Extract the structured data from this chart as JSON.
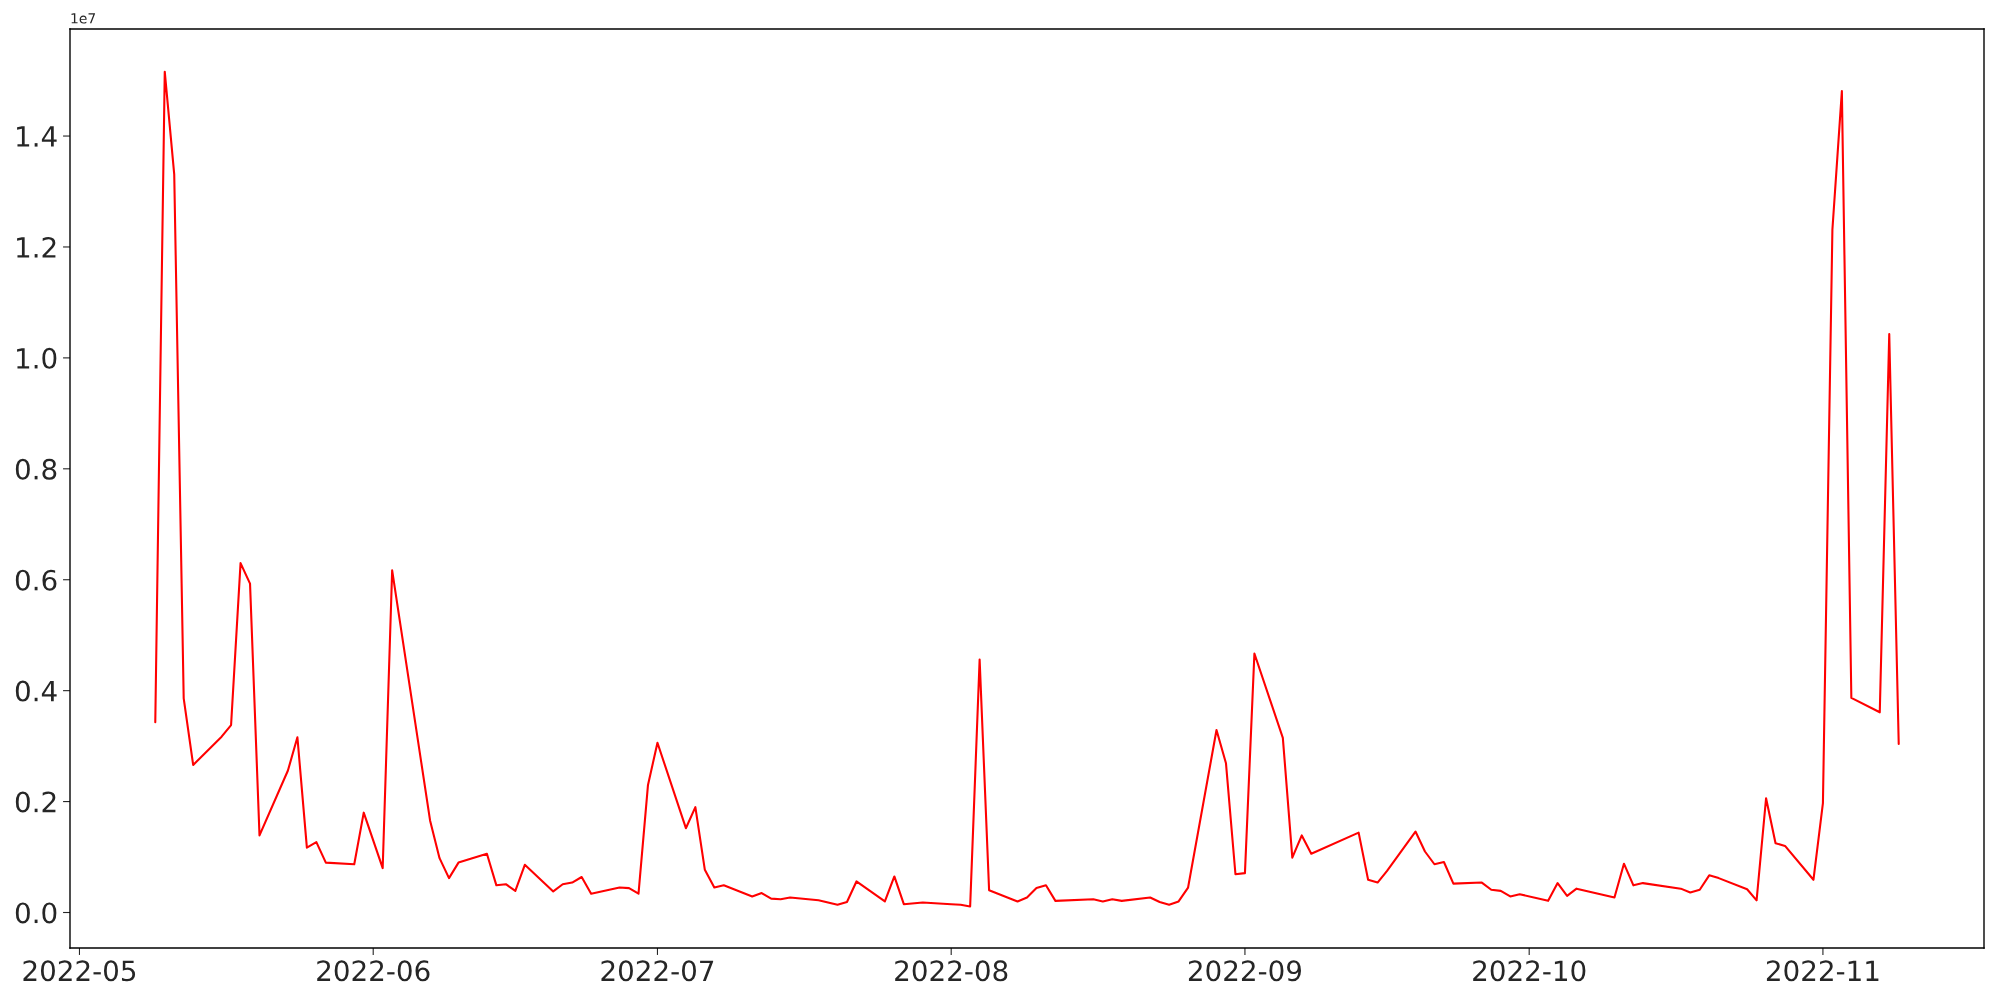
{
  "chart_data": {
    "type": "line",
    "x": [
      "2022-05-09",
      "2022-05-10",
      "2022-05-11",
      "2022-05-12",
      "2022-05-13",
      "2022-05-16",
      "2022-05-17",
      "2022-05-18",
      "2022-05-19",
      "2022-05-20",
      "2022-05-23",
      "2022-05-24",
      "2022-05-25",
      "2022-05-26",
      "2022-05-27",
      "2022-05-30",
      "2022-05-31",
      "2022-06-02",
      "2022-06-03",
      "2022-06-07",
      "2022-06-08",
      "2022-06-09",
      "2022-06-10",
      "2022-06-13",
      "2022-06-14",
      "2022-06-15",
      "2022-06-16",
      "2022-06-17",
      "2022-06-20",
      "2022-06-21",
      "2022-06-22",
      "2022-06-23",
      "2022-06-24",
      "2022-06-27",
      "2022-06-28",
      "2022-06-29",
      "2022-06-30",
      "2022-07-01",
      "2022-07-04",
      "2022-07-05",
      "2022-07-06",
      "2022-07-07",
      "2022-07-08",
      "2022-07-11",
      "2022-07-12",
      "2022-07-13",
      "2022-07-14",
      "2022-07-15",
      "2022-07-18",
      "2022-07-19",
      "2022-07-20",
      "2022-07-21",
      "2022-07-22",
      "2022-07-25",
      "2022-07-26",
      "2022-07-27",
      "2022-07-29",
      "2022-08-01",
      "2022-08-02",
      "2022-08-03",
      "2022-08-04",
      "2022-08-05",
      "2022-08-08",
      "2022-08-09",
      "2022-08-10",
      "2022-08-11",
      "2022-08-12",
      "2022-08-16",
      "2022-08-17",
      "2022-08-18",
      "2022-08-19",
      "2022-08-22",
      "2022-08-23",
      "2022-08-24",
      "2022-08-25",
      "2022-08-26",
      "2022-08-29",
      "2022-08-30",
      "2022-08-31",
      "2022-09-01",
      "2022-09-02",
      "2022-09-05",
      "2022-09-06",
      "2022-09-07",
      "2022-09-08",
      "2022-09-13",
      "2022-09-14",
      "2022-09-15",
      "2022-09-16",
      "2022-09-19",
      "2022-09-20",
      "2022-09-21",
      "2022-09-22",
      "2022-09-23",
      "2022-09-26",
      "2022-09-27",
      "2022-09-28",
      "2022-09-29",
      "2022-09-30",
      "2022-10-03",
      "2022-10-04",
      "2022-10-05",
      "2022-10-06",
      "2022-10-10",
      "2022-10-11",
      "2022-10-12",
      "2022-10-13",
      "2022-10-17",
      "2022-10-18",
      "2022-10-19",
      "2022-10-20",
      "2022-10-21",
      "2022-10-24",
      "2022-10-25",
      "2022-10-26",
      "2022-10-27",
      "2022-10-28",
      "2022-10-31",
      "2022-11-01",
      "2022-11-02",
      "2022-11-03",
      "2022-11-04",
      "2022-11-07",
      "2022-11-08",
      "2022-11-09"
    ],
    "series": [
      {
        "color": "#ff0000",
        "values": [
          0.343,
          1.516,
          1.331,
          0.386,
          0.266,
          0.317,
          0.338,
          0.63,
          0.593,
          0.139,
          0.256,
          0.316,
          0.117,
          0.127,
          0.09,
          0.087,
          0.18,
          0.08,
          0.617,
          0.166,
          0.098,
          0.062,
          0.09,
          0.106,
          0.049,
          0.051,
          0.039,
          0.086,
          0.038,
          0.051,
          0.054,
          0.064,
          0.034,
          0.045,
          0.044,
          0.034,
          0.23,
          0.306,
          0.152,
          0.19,
          0.077,
          0.045,
          0.049,
          0.029,
          0.035,
          0.025,
          0.024,
          0.027,
          0.022,
          0.018,
          0.014,
          0.019,
          0.056,
          0.02,
          0.065,
          0.015,
          0.018,
          0.015,
          0.014,
          0.011,
          0.456,
          0.04,
          0.02,
          0.027,
          0.044,
          0.049,
          0.021,
          0.024,
          0.02,
          0.024,
          0.021,
          0.027,
          0.019,
          0.014,
          0.02,
          0.045,
          0.329,
          0.269,
          0.069,
          0.071,
          0.467,
          0.315,
          0.099,
          0.139,
          0.106,
          0.144,
          0.059,
          0.054,
          0.075,
          0.146,
          0.11,
          0.087,
          0.091,
          0.052,
          0.054,
          0.041,
          0.039,
          0.029,
          0.033,
          0.021,
          0.053,
          0.03,
          0.043,
          0.027,
          0.088,
          0.049,
          0.053,
          0.043,
          0.036,
          0.041,
          0.067,
          0.062,
          0.042,
          0.022,
          0.206,
          0.125,
          0.12,
          0.059,
          0.197,
          1.231,
          1.481,
          0.387,
          0.361,
          1.043,
          0.304
        ]
      }
    ],
    "xlim": [
      "2022-04-30",
      "2022-11-18"
    ],
    "xticks": [
      {
        "value": "2022-05-01",
        "label": "2022-05"
      },
      {
        "value": "2022-06-01",
        "label": "2022-06"
      },
      {
        "value": "2022-07-01",
        "label": "2022-07"
      },
      {
        "value": "2022-08-01",
        "label": "2022-08"
      },
      {
        "value": "2022-09-01",
        "label": "2022-09"
      },
      {
        "value": "2022-10-01",
        "label": "2022-10"
      },
      {
        "value": "2022-11-01",
        "label": "2022-11"
      }
    ],
    "ylim": [
      -0.064,
      1.593
    ],
    "yticks": [
      {
        "value": 0,
        "label": "0.0"
      },
      {
        "value": 0.2,
        "label": "0.2"
      },
      {
        "value": 0.4,
        "label": "0.4"
      },
      {
        "value": 0.6,
        "label": "0.6"
      },
      {
        "value": 0.8,
        "label": "0.8"
      },
      {
        "value": 1.0,
        "label": "1.0"
      },
      {
        "value": 1.2,
        "label": "1.2"
      },
      {
        "value": 1.4,
        "label": "1.4"
      }
    ],
    "annotations": [
      "1e7"
    ],
    "grid": false,
    "legend": false,
    "line_style": "solid"
  }
}
